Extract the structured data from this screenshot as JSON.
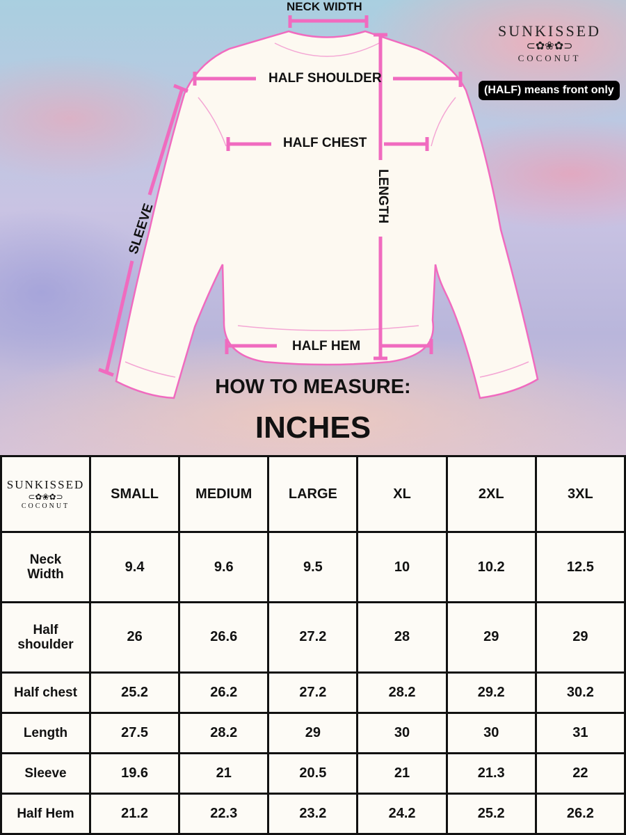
{
  "brand": {
    "line1": "SUNKISSED",
    "line2": "COCONUT"
  },
  "note": "(HALF) means front only",
  "diagram": {
    "neck_width": "NECK WIDTH",
    "half_shoulder": "HALF SHOULDER",
    "half_chest": "HALF CHEST",
    "length": "LENGTH",
    "sleeve": "SLEEVE",
    "half_hem": "HALF HEM",
    "accent_color": "#f06bbf",
    "shirt_fill": "#fdf9f1"
  },
  "heading": "HOW TO MEASURE:",
  "unit": "INCHES",
  "table": {
    "columns": [
      "SMALL",
      "MEDIUM",
      "LARGE",
      "XL",
      "2XL",
      "3XL"
    ],
    "rows": [
      {
        "label": "Neck Width",
        "values": [
          "9.4",
          "9.6",
          "9.5",
          "10",
          "10.2",
          "12.5"
        ]
      },
      {
        "label": "Half shoulder",
        "values": [
          "26",
          "26.6",
          "27.2",
          "28",
          "29",
          "29"
        ]
      },
      {
        "label": "Half chest",
        "values": [
          "25.2",
          "26.2",
          "27.2",
          "28.2",
          "29.2",
          "30.2"
        ]
      },
      {
        "label": "Length",
        "values": [
          "27.5",
          "28.2",
          "29",
          "30",
          "30",
          "31"
        ]
      },
      {
        "label": "Sleeve",
        "values": [
          "19.6",
          "21",
          "20.5",
          "21",
          "21.3",
          "22"
        ]
      },
      {
        "label": "Half Hem",
        "values": [
          "21.2",
          "22.3",
          "23.2",
          "24.2",
          "25.2",
          "26.2"
        ]
      }
    ]
  }
}
